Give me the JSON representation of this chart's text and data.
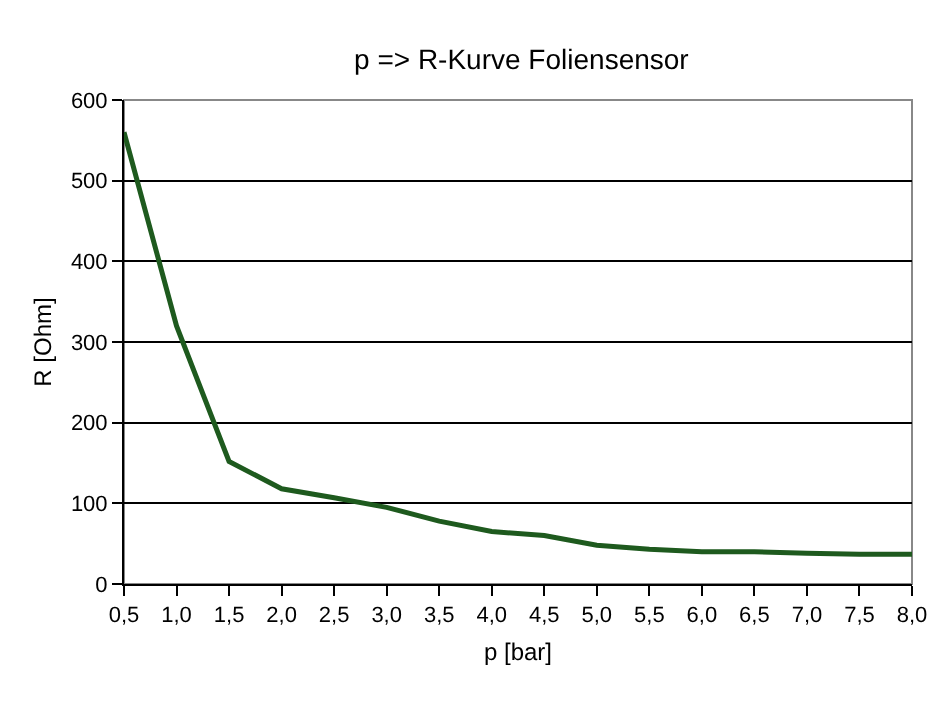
{
  "chart_data": {
    "type": "line",
    "title": "p => R-Kurve Foliensensor",
    "xlabel": "p [bar]",
    "ylabel": "R [Ohm]",
    "x": [
      0.5,
      1.0,
      1.5,
      2.0,
      2.5,
      3.0,
      3.5,
      4.0,
      4.5,
      5.0,
      5.5,
      6.0,
      6.5,
      7.0,
      7.5,
      8.0
    ],
    "series": [
      {
        "color": "#1e5a1e",
        "values": [
          560,
          320,
          152,
          118,
          107,
          95,
          78,
          65,
          60,
          48,
          43,
          40,
          40,
          38,
          37,
          37
        ]
      }
    ],
    "xlim": [
      0.5,
      8.0
    ],
    "xticks": [
      {
        "value": 0.5,
        "label": "0,5"
      },
      {
        "value": 1.0,
        "label": "1,0"
      },
      {
        "value": 1.5,
        "label": "1,5"
      },
      {
        "value": 2.0,
        "label": "2,0"
      },
      {
        "value": 2.5,
        "label": "2,5"
      },
      {
        "value": 3.0,
        "label": "3,0"
      },
      {
        "value": 3.5,
        "label": "3,5"
      },
      {
        "value": 4.0,
        "label": "4,0"
      },
      {
        "value": 4.5,
        "label": "4,5"
      },
      {
        "value": 5.0,
        "label": "5,0"
      },
      {
        "value": 5.5,
        "label": "5,5"
      },
      {
        "value": 6.0,
        "label": "6,0"
      },
      {
        "value": 6.5,
        "label": "6,5"
      },
      {
        "value": 7.0,
        "label": "7,0"
      },
      {
        "value": 7.5,
        "label": "7,5"
      },
      {
        "value": 8.0,
        "label": "8,0"
      }
    ],
    "ylim": [
      0,
      600
    ],
    "yticks": [
      0,
      100,
      200,
      300,
      400,
      500,
      600
    ],
    "grid": "y",
    "marker": "none",
    "line_style": "solid"
  }
}
